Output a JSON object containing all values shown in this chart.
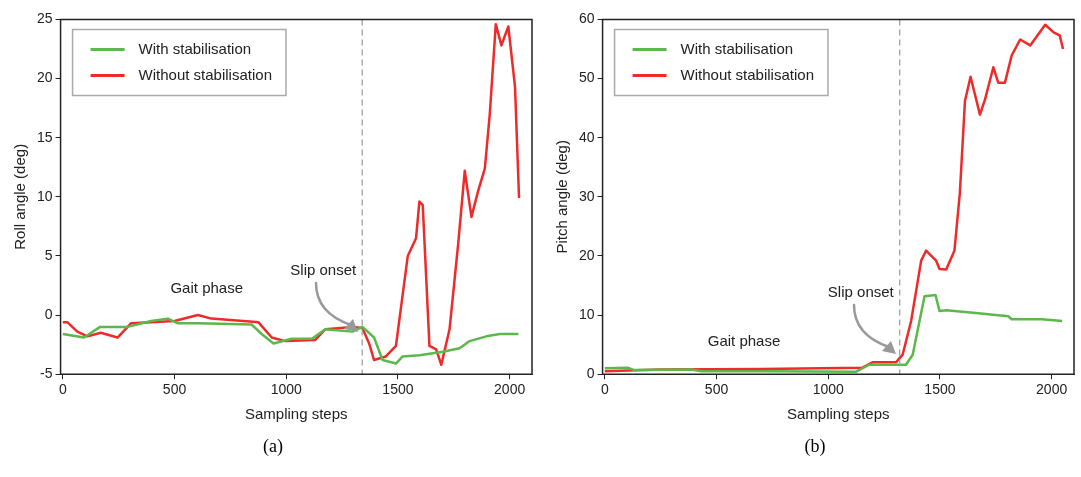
{
  "chart_data": [
    {
      "type": "line",
      "xlabel": "Sampling steps",
      "ylabel": "Roll angle (deg)",
      "xlim": [
        -10,
        2100
      ],
      "xticks": [
        0,
        500,
        1000,
        1500,
        2000
      ],
      "ylim": [
        -5,
        25
      ],
      "yticks": [
        -5,
        0,
        5,
        10,
        15,
        20,
        25
      ],
      "legend": "top left",
      "grid": false,
      "marker": "none",
      "line_style": "solid",
      "series": [
        {
          "name": "With stabilisation",
          "color": "#5ab94a",
          "x": [
            0,
            95,
            167,
            290,
            395,
            470,
            515,
            605,
            845,
            890,
            943,
            1025,
            1115,
            1175,
            1296,
            1341,
            1393,
            1431,
            1491,
            1521,
            1596,
            1701,
            1776,
            1821,
            1896,
            1956,
            2039
          ],
          "values": [
            -1.6,
            -1.9,
            -1.0,
            -1.0,
            -0.5,
            -0.3,
            -0.7,
            -0.7,
            -0.8,
            -1.6,
            -2.4,
            -2.0,
            -2.0,
            -1.2,
            -1.4,
            -1.0,
            -1.9,
            -3.8,
            -4.1,
            -3.5,
            -3.4,
            -3.1,
            -2.8,
            -2.2,
            -1.8,
            -1.6,
            -1.6
          ]
        },
        {
          "name": "Without stabilisation",
          "color": "#ee2a2a",
          "x": [
            0,
            20,
            65,
            110,
            170,
            245,
            305,
            395,
            500,
            605,
            665,
            875,
            935,
            995,
            1130,
            1175,
            1296,
            1341,
            1371,
            1393,
            1446,
            1491,
            1544,
            1581,
            1596,
            1611,
            1641,
            1671,
            1694,
            1731,
            1769,
            1799,
            1829,
            1859,
            1889,
            1911,
            1938,
            1963,
            1994,
            2024,
            2042
          ],
          "values": [
            -0.6,
            -0.6,
            -1.4,
            -1.8,
            -1.5,
            -1.9,
            -0.7,
            -0.6,
            -0.5,
            0.0,
            -0.3,
            -0.6,
            -1.9,
            -2.2,
            -2.1,
            -1.2,
            -1.0,
            -1.1,
            -2.4,
            -3.8,
            -3.5,
            -2.6,
            5.0,
            6.5,
            9.6,
            9.3,
            -2.6,
            -2.9,
            -4.2,
            -1.2,
            5.9,
            12.2,
            8.3,
            10.5,
            12.4,
            17.0,
            24.6,
            22.8,
            24.4,
            19.3,
            9.9
          ]
        }
      ],
      "ref_lines": [
        {
          "axis": "x",
          "value": 1340,
          "label": "Slip onset",
          "color": "#999999",
          "line_style": "dashed"
        }
      ],
      "annotations": [
        "Gait phase",
        "(a)"
      ]
    },
    {
      "type": "line",
      "xlabel": "Sampling steps",
      "ylabel": "Pitch angle (deg)",
      "xlim": [
        -10,
        2100
      ],
      "xticks": [
        0,
        500,
        1000,
        1500,
        2000
      ],
      "ylim": [
        0,
        60
      ],
      "yticks": [
        0,
        10,
        20,
        30,
        40,
        50,
        60
      ],
      "legend": "top left",
      "grid": false,
      "marker": "none",
      "line_style": "solid",
      "series": [
        {
          "name": "With stabilisation",
          "color": "#5ab94a",
          "x": [
            0,
            102,
            132,
            387,
            432,
            703,
            1123,
            1183,
            1348,
            1378,
            1431,
            1480,
            1498,
            1528,
            1649,
            1806,
            1821,
            1956,
            2047
          ],
          "values": [
            1.0,
            1.1,
            0.7,
            0.8,
            0.5,
            0.5,
            0.4,
            1.6,
            1.6,
            3.3,
            13.2,
            13.4,
            10.7,
            10.8,
            10.4,
            9.8,
            9.3,
            9.3,
            9.0
          ]
        },
        {
          "name": "Without stabilisation",
          "color": "#ee2a2a",
          "x": [
            0,
            252,
            703,
            1153,
            1198,
            1303,
            1333,
            1371,
            1416,
            1438,
            1483,
            1498,
            1528,
            1565,
            1589,
            1612,
            1637,
            1679,
            1702,
            1739,
            1761,
            1791,
            1821,
            1859,
            1904,
            1971,
            2009,
            2036,
            2051
          ],
          "values": [
            0.5,
            0.8,
            0.9,
            1.1,
            2.0,
            2.0,
            3.3,
            9.0,
            19.2,
            20.9,
            19.2,
            17.8,
            17.7,
            20.9,
            30.6,
            46.2,
            50.3,
            43.9,
            46.5,
            51.9,
            49.3,
            49.3,
            53.9,
            56.6,
            55.6,
            59.1,
            57.8,
            57.3,
            55.0
          ]
        }
      ],
      "ref_lines": [
        {
          "axis": "x",
          "value": 1320,
          "label": "Slip onset",
          "color": "#999999",
          "line_style": "dashed"
        }
      ],
      "annotations": [
        "Gait phase",
        "(b)"
      ]
    }
  ]
}
